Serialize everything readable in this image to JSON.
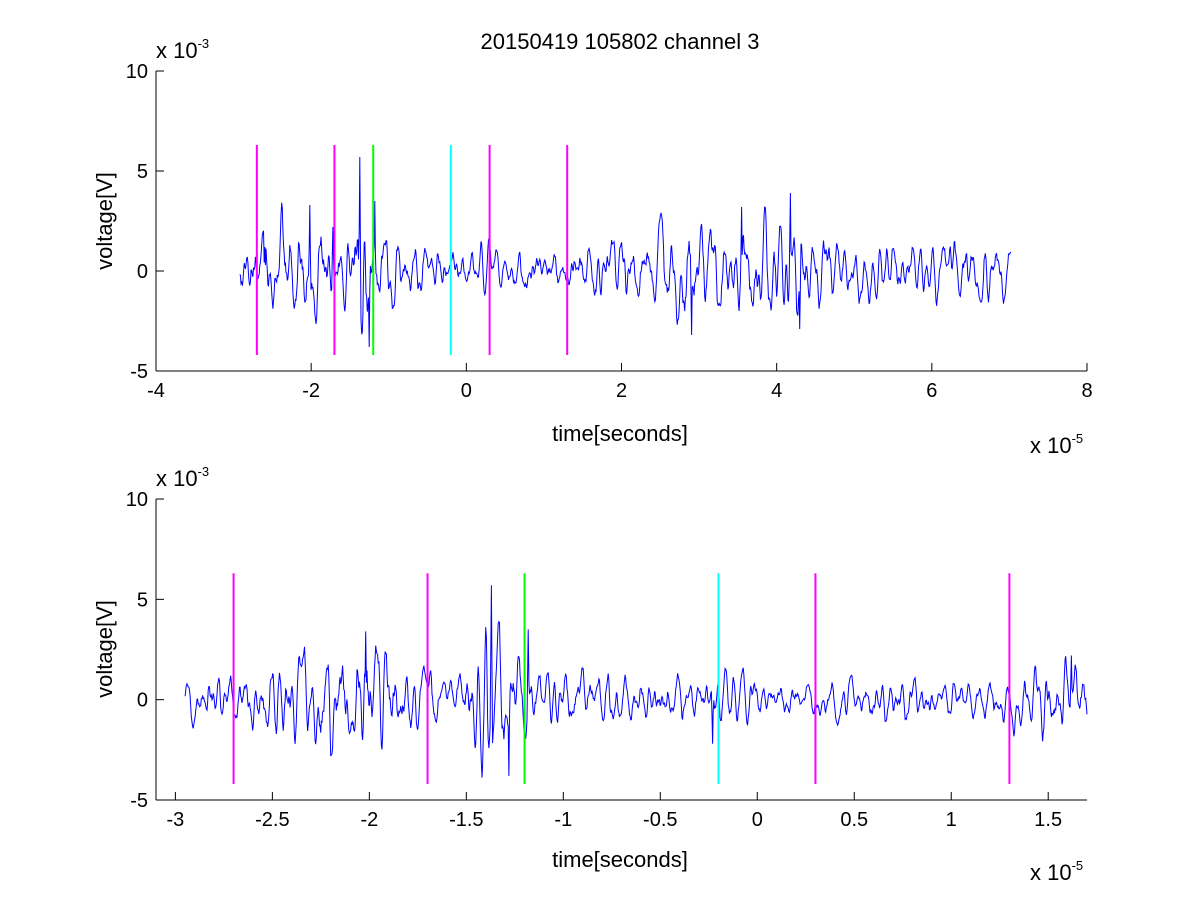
{
  "title": "20150419 105802 channel 3",
  "chart_data": [
    {
      "type": "line",
      "xlabel": "time[seconds]",
      "ylabel": "voltage[V]",
      "x_multiplier_label": "x 10",
      "x_multiplier_exp": "-5",
      "y_multiplier_label": "x 10",
      "y_multiplier_exp": "-3",
      "xlim": [
        -4,
        8
      ],
      "ylim": [
        -5,
        10
      ],
      "x_ticks": [
        -4,
        -2,
        0,
        2,
        4,
        6,
        8
      ],
      "x_tick_labels": [
        "-4",
        "-2",
        "0",
        "2",
        "4",
        "6",
        "8"
      ],
      "y_ticks": [
        -5,
        0,
        5,
        10
      ],
      "y_tick_labels": [
        "-5",
        "0",
        "5",
        "10"
      ],
      "grid": false,
      "signal": {
        "color": "#0000ff",
        "x_range": [
          -2.92,
          7.02
        ],
        "envelope": [
          [
            -2.92,
            1.6
          ],
          [
            -2.7,
            1.8
          ],
          [
            -2.3,
            2.3
          ],
          [
            -2.0,
            2.6
          ],
          [
            -1.85,
            2.2
          ],
          [
            -1.5,
            1.4
          ],
          [
            -1.37,
            4.5
          ],
          [
            -1.2,
            2.0
          ],
          [
            -0.5,
            1.2
          ],
          [
            -0.2,
            1.1
          ],
          [
            0.5,
            1.0
          ],
          [
            1.2,
            1.1
          ],
          [
            1.7,
            1.5
          ],
          [
            2.2,
            1.8
          ],
          [
            2.8,
            2.6
          ],
          [
            3.2,
            2.0
          ],
          [
            3.8,
            2.2
          ],
          [
            4.2,
            2.6
          ],
          [
            4.5,
            1.8
          ],
          [
            5.0,
            1.4
          ],
          [
            5.5,
            1.5
          ],
          [
            6.0,
            1.4
          ],
          [
            6.5,
            1.7
          ],
          [
            7.02,
            1.5
          ]
        ],
        "spikes": [
          {
            "x": -2.6,
            "y": 1.2
          },
          {
            "x": -2.02,
            "y": 3.3
          },
          {
            "x": -1.72,
            "y": 2.2
          },
          {
            "x": -1.37,
            "y": 5.7
          },
          {
            "x": -1.25,
            "y": -3.8
          },
          {
            "x": -1.18,
            "y": 3.5
          },
          {
            "x": 2.9,
            "y": -3.2
          },
          {
            "x": 3.55,
            "y": 3.2
          },
          {
            "x": 4.18,
            "y": 3.9
          },
          {
            "x": 4.3,
            "y": -2.9
          }
        ]
      },
      "markers": [
        {
          "x": -2.7,
          "color": "#ff00ff"
        },
        {
          "x": -1.7,
          "color": "#ff00ff"
        },
        {
          "x": -1.2,
          "color": "#00ff00"
        },
        {
          "x": -0.2,
          "color": "#00ffff"
        },
        {
          "x": 0.3,
          "color": "#ff00ff"
        },
        {
          "x": 1.3,
          "color": "#ff00ff"
        }
      ],
      "marker_span": [
        -4.2,
        6.3
      ]
    },
    {
      "type": "line",
      "xlabel": "time[seconds]",
      "ylabel": "voltage[V]",
      "x_multiplier_label": "x 10",
      "x_multiplier_exp": "-5",
      "y_multiplier_label": "x 10",
      "y_multiplier_exp": "-3",
      "xlim": [
        -3.1,
        1.7
      ],
      "ylim": [
        -5,
        10
      ],
      "x_ticks": [
        -3,
        -2.5,
        -2,
        -1.5,
        -1,
        -0.5,
        0,
        0.5,
        1,
        1.5
      ],
      "x_tick_labels": [
        "-3",
        "-2.5",
        "-2",
        "-1.5",
        "-1",
        "-0.5",
        "0",
        "0.5",
        "1",
        "1.5"
      ],
      "y_ticks": [
        -5,
        0,
        5,
        10
      ],
      "y_tick_labels": [
        "-5",
        "0",
        "5",
        "10"
      ],
      "grid": false,
      "signal": {
        "color": "#0000ff",
        "x_range": [
          -2.95,
          1.7
        ],
        "envelope": [
          [
            -2.95,
            0.8
          ],
          [
            -2.8,
            1.4
          ],
          [
            -2.6,
            1.3
          ],
          [
            -2.4,
            2.3
          ],
          [
            -2.2,
            2.5
          ],
          [
            -2.0,
            2.8
          ],
          [
            -1.85,
            2.2
          ],
          [
            -1.7,
            1.6
          ],
          [
            -1.55,
            1.0
          ],
          [
            -1.38,
            3.5
          ],
          [
            -1.2,
            1.6
          ],
          [
            -1.0,
            1.2
          ],
          [
            -0.7,
            1.3
          ],
          [
            -0.4,
            1.1
          ],
          [
            -0.2,
            1.2
          ],
          [
            0.0,
            1.0
          ],
          [
            0.3,
            0.9
          ],
          [
            0.6,
            1.0
          ],
          [
            0.9,
            0.9
          ],
          [
            1.2,
            1.0
          ],
          [
            1.45,
            1.6
          ],
          [
            1.7,
            1.8
          ]
        ],
        "spikes": [
          {
            "x": -2.02,
            "y": 3.4
          },
          {
            "x": -1.37,
            "y": 5.7
          },
          {
            "x": -1.28,
            "y": -3.8
          },
          {
            "x": -1.18,
            "y": 3.5
          },
          {
            "x": -0.23,
            "y": -2.2
          },
          {
            "x": 1.62,
            "y": 2.2
          }
        ]
      },
      "markers": [
        {
          "x": -2.7,
          "color": "#ff00ff"
        },
        {
          "x": -1.7,
          "color": "#ff00ff"
        },
        {
          "x": -1.2,
          "color": "#00ff00"
        },
        {
          "x": -0.2,
          "color": "#00ffff"
        },
        {
          "x": 0.3,
          "color": "#ff00ff"
        },
        {
          "x": 1.3,
          "color": "#ff00ff"
        }
      ],
      "marker_span": [
        -4.2,
        6.3
      ]
    }
  ]
}
